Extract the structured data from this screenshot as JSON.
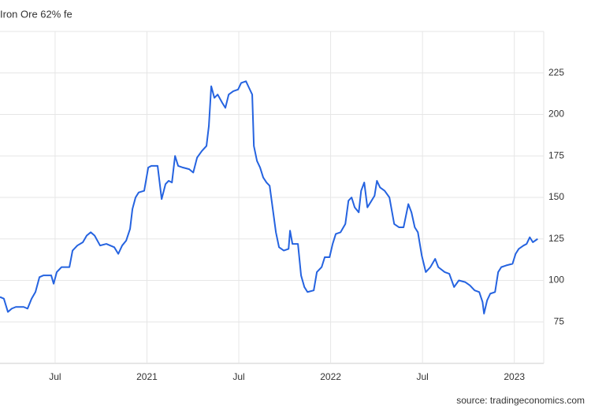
{
  "chart_data": {
    "type": "line",
    "title": "Iron Ore 62% fe",
    "source": "source: tradingeconomics.com",
    "x": [
      2020.2,
      2020.221,
      2020.243,
      2020.264,
      2020.286,
      2020.329,
      2020.35,
      2020.372,
      2020.393,
      2020.415,
      2020.436,
      2020.479,
      2020.492,
      2020.509,
      2020.535,
      2020.578,
      2020.595,
      2020.621,
      2020.651,
      2020.672,
      2020.694,
      2020.715,
      2020.745,
      2020.779,
      2020.822,
      2020.844,
      2020.865,
      2020.887,
      2020.908,
      2020.921,
      2020.938,
      2020.955,
      2020.985,
      2021.007,
      2021.024,
      2021.058,
      2021.08,
      2021.101,
      2021.118,
      2021.136,
      2021.153,
      2021.17,
      2021.196,
      2021.23,
      2021.252,
      2021.273,
      2021.299,
      2021.324,
      2021.337,
      2021.35,
      2021.367,
      2021.385,
      2021.41,
      2021.427,
      2021.445,
      2021.47,
      2021.496,
      2021.513,
      2021.539,
      2021.556,
      2021.573,
      2021.582,
      2021.599,
      2021.616,
      2021.633,
      2021.651,
      2021.668,
      2021.685,
      2021.702,
      2021.719,
      2021.745,
      2021.771,
      2021.779,
      2021.792,
      2021.822,
      2021.839,
      2021.857,
      2021.874,
      2021.908,
      2021.925,
      2021.951,
      2021.968,
      2021.994,
      2022.011,
      2022.028,
      2022.054,
      2022.08,
      2022.097,
      2022.114,
      2022.131,
      2022.153,
      2022.166,
      2022.183,
      2022.2,
      2022.217,
      2022.239,
      2022.252,
      2022.269,
      2022.294,
      2022.32,
      2022.346,
      2022.372,
      2022.397,
      2022.423,
      2022.44,
      2022.458,
      2022.475,
      2022.496,
      2022.518,
      2022.543,
      2022.569,
      2022.586,
      2022.621,
      2022.646,
      2022.672,
      2022.698,
      2022.732,
      2022.758,
      2022.784,
      2022.809,
      2022.827,
      2022.835,
      2022.852,
      2022.869,
      2022.895,
      2022.912,
      2022.929,
      2022.955,
      2022.99,
      2023.007,
      2023.024,
      2023.05,
      2023.067,
      2023.084,
      2023.101,
      2023.127
    ],
    "series": [
      {
        "color": "#2563e0",
        "values": [
          90,
          89,
          81,
          83,
          84,
          84,
          83,
          89,
          93,
          102,
          103,
          103,
          98,
          105,
          108,
          108,
          118,
          121,
          123,
          127,
          129,
          127,
          121,
          122,
          120,
          116,
          121,
          124,
          131,
          143,
          150,
          153,
          154,
          168,
          169,
          169,
          149,
          158,
          160,
          159,
          175,
          169,
          168,
          167,
          165,
          174,
          178,
          181,
          193,
          217,
          210,
          212,
          207,
          204,
          212,
          214,
          215,
          219,
          220,
          216,
          212,
          181,
          172,
          168,
          162,
          159,
          157,
          143,
          129,
          120,
          118,
          119,
          130,
          122,
          122,
          103,
          96,
          93,
          94,
          105,
          108,
          114,
          114,
          122,
          128,
          129,
          134,
          148,
          150,
          144,
          141,
          154,
          159,
          144,
          147,
          151,
          160,
          156,
          154,
          150,
          134,
          132,
          132,
          146,
          141,
          132,
          129,
          115,
          105,
          108,
          113,
          108,
          105,
          104,
          96,
          100,
          99,
          97,
          94,
          93,
          87,
          80,
          88,
          92,
          93,
          105,
          108,
          109,
          110,
          116,
          119,
          121,
          122,
          126,
          123,
          125
        ]
      }
    ],
    "xlim": [
      2020.2,
      2023.16
    ],
    "xticks": [
      {
        "value": 2020.5,
        "label": "Jul"
      },
      2021,
      {
        "value": 2021.5,
        "label": "Jul"
      },
      2022,
      {
        "value": 2022.5,
        "label": "Jul"
      },
      2023
    ],
    "ylim": [
      50,
      250
    ],
    "yticks": [
      75,
      100,
      125,
      150,
      175,
      200,
      225
    ],
    "grid": true
  }
}
